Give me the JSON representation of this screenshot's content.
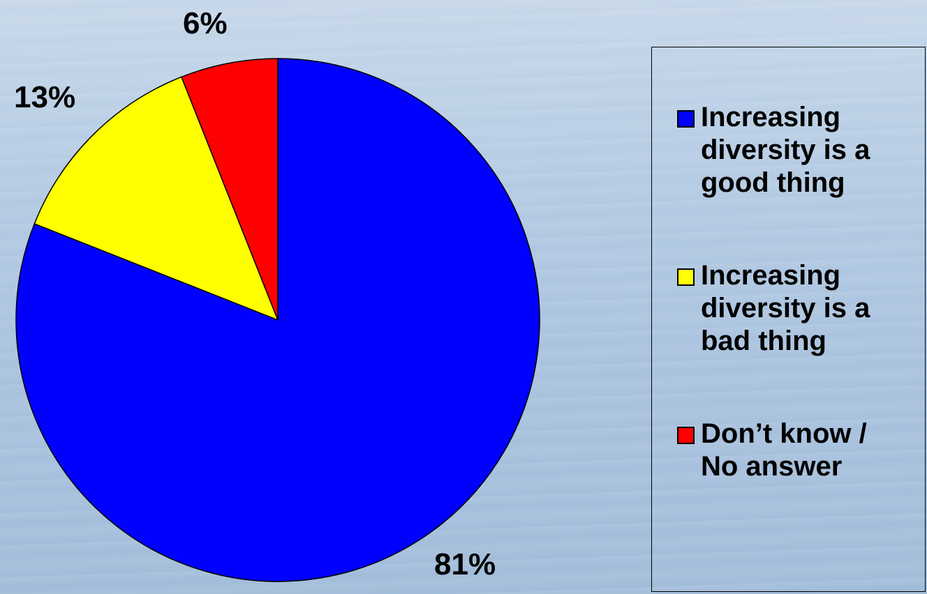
{
  "chart_data": {
    "type": "pie",
    "title": "",
    "categories": [
      "Increasing diversity is a good thing",
      "Increasing diversity is a bad thing",
      "Don’t know / No answer"
    ],
    "values": [
      81,
      13,
      6
    ],
    "data_labels": [
      "81%",
      "13%",
      "6%"
    ],
    "colors": [
      "#0000ff",
      "#ffff00",
      "#ff0000"
    ],
    "start": "12 o'clock",
    "direction": "clockwise",
    "legend_position": "right"
  },
  "legend": {
    "items": [
      {
        "label": "Increasing diversity is a good thing",
        "color": "#0000ff"
      },
      {
        "label": "Increasing diversity is a bad thing",
        "color": "#ffff00"
      },
      {
        "label": "Don’t know / No answer",
        "color": "#ff0000"
      }
    ]
  }
}
